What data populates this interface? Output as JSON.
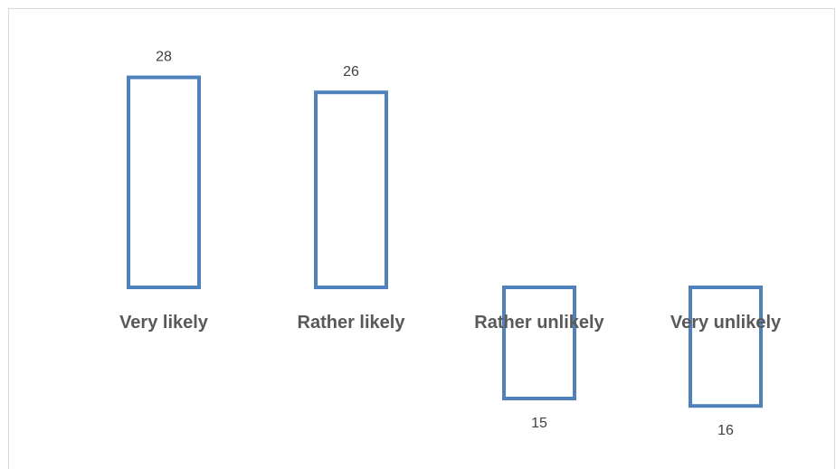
{
  "chart_data": {
    "type": "bar",
    "categories": [
      "Very likely",
      "Rather likely",
      "Rather unlikely",
      "Very unlikely"
    ],
    "values": [
      28,
      26,
      15,
      16
    ],
    "bar_direction": [
      "up",
      "up",
      "down",
      "down"
    ],
    "title": "",
    "xlabel": "",
    "ylabel": "",
    "legend": "none",
    "grid": false,
    "colors": {
      "bar_outline": "#4f81bd",
      "category_text": "#595959",
      "value_text": "#404040",
      "frame": "#d9d9d9"
    }
  }
}
